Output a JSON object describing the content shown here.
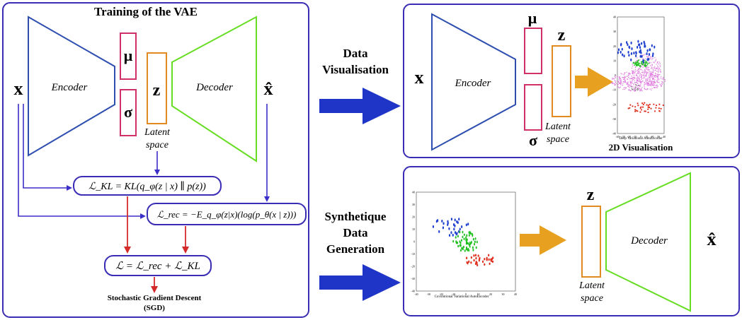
{
  "vae_panel": {
    "title": "Training of the VAE",
    "x": "x",
    "x_hat": "x̂",
    "encoder": "Encoder",
    "decoder": "Decoder",
    "mu": "μ",
    "sigma": "σ",
    "z": "z",
    "latent_line1": "Latent",
    "latent_line2": "space",
    "loss_kl": "ℒ_KL = KL(q_φ(z | x) ∥ p(z))",
    "loss_rec": "ℒ_rec = −E_q_φ(z|x)(log(p_θ(x | z)))",
    "loss_total": "ℒ = ℒ_rec + ℒ_KL",
    "sgd_line1": "Stochastic Gradient Descent",
    "sgd_line2": "(SGD)"
  },
  "middle": {
    "data_vis_line1": "Data",
    "data_vis_line2": "Visualisation",
    "synth_line1": "Synthetique",
    "synth_line2": "Data",
    "synth_line3": "Generation"
  },
  "vis_panel": {
    "x": "x",
    "encoder": "Encoder",
    "mu": "μ",
    "sigma": "σ",
    "z": "z",
    "latent_line1": "Latent",
    "latent_line2": "space",
    "plot_caption": "Deep Variational AutoEncoder",
    "title": "2D Visualisation",
    "ticks_x": [
      "-40",
      "-30",
      "-20",
      "-10",
      "0",
      "10",
      "20",
      "30",
      "40"
    ],
    "ticks_y": [
      "40",
      "30",
      "20",
      "10",
      "0",
      "-10",
      "-20",
      "-30",
      "-40"
    ]
  },
  "gen_panel": {
    "z": "z",
    "decoder": "Decoder",
    "x_hat": "x̂",
    "latent_line1": "Latent",
    "latent_line2": "space",
    "plot_caption": "Covolutional Variational AutoEncoder",
    "ticks_x": [
      "-40",
      "-30",
      "-20",
      "-10",
      "0",
      "10",
      "20",
      "30",
      "40"
    ],
    "ticks_y": [
      "40",
      "30",
      "20",
      "10",
      "0",
      "-10",
      "-20",
      "-30",
      "-40"
    ]
  },
  "colors": {
    "frame": "#3a2db5",
    "encoder": "#2e4fb0",
    "decoder": "#66dd22",
    "mu_sigma": "#d0306a",
    "latent": "#e08a20",
    "arrow_blue": "#3b2fc9",
    "arrow_red": "#d42a2a",
    "big_blue": "#1f35c7",
    "big_orange": "#e8a020"
  }
}
